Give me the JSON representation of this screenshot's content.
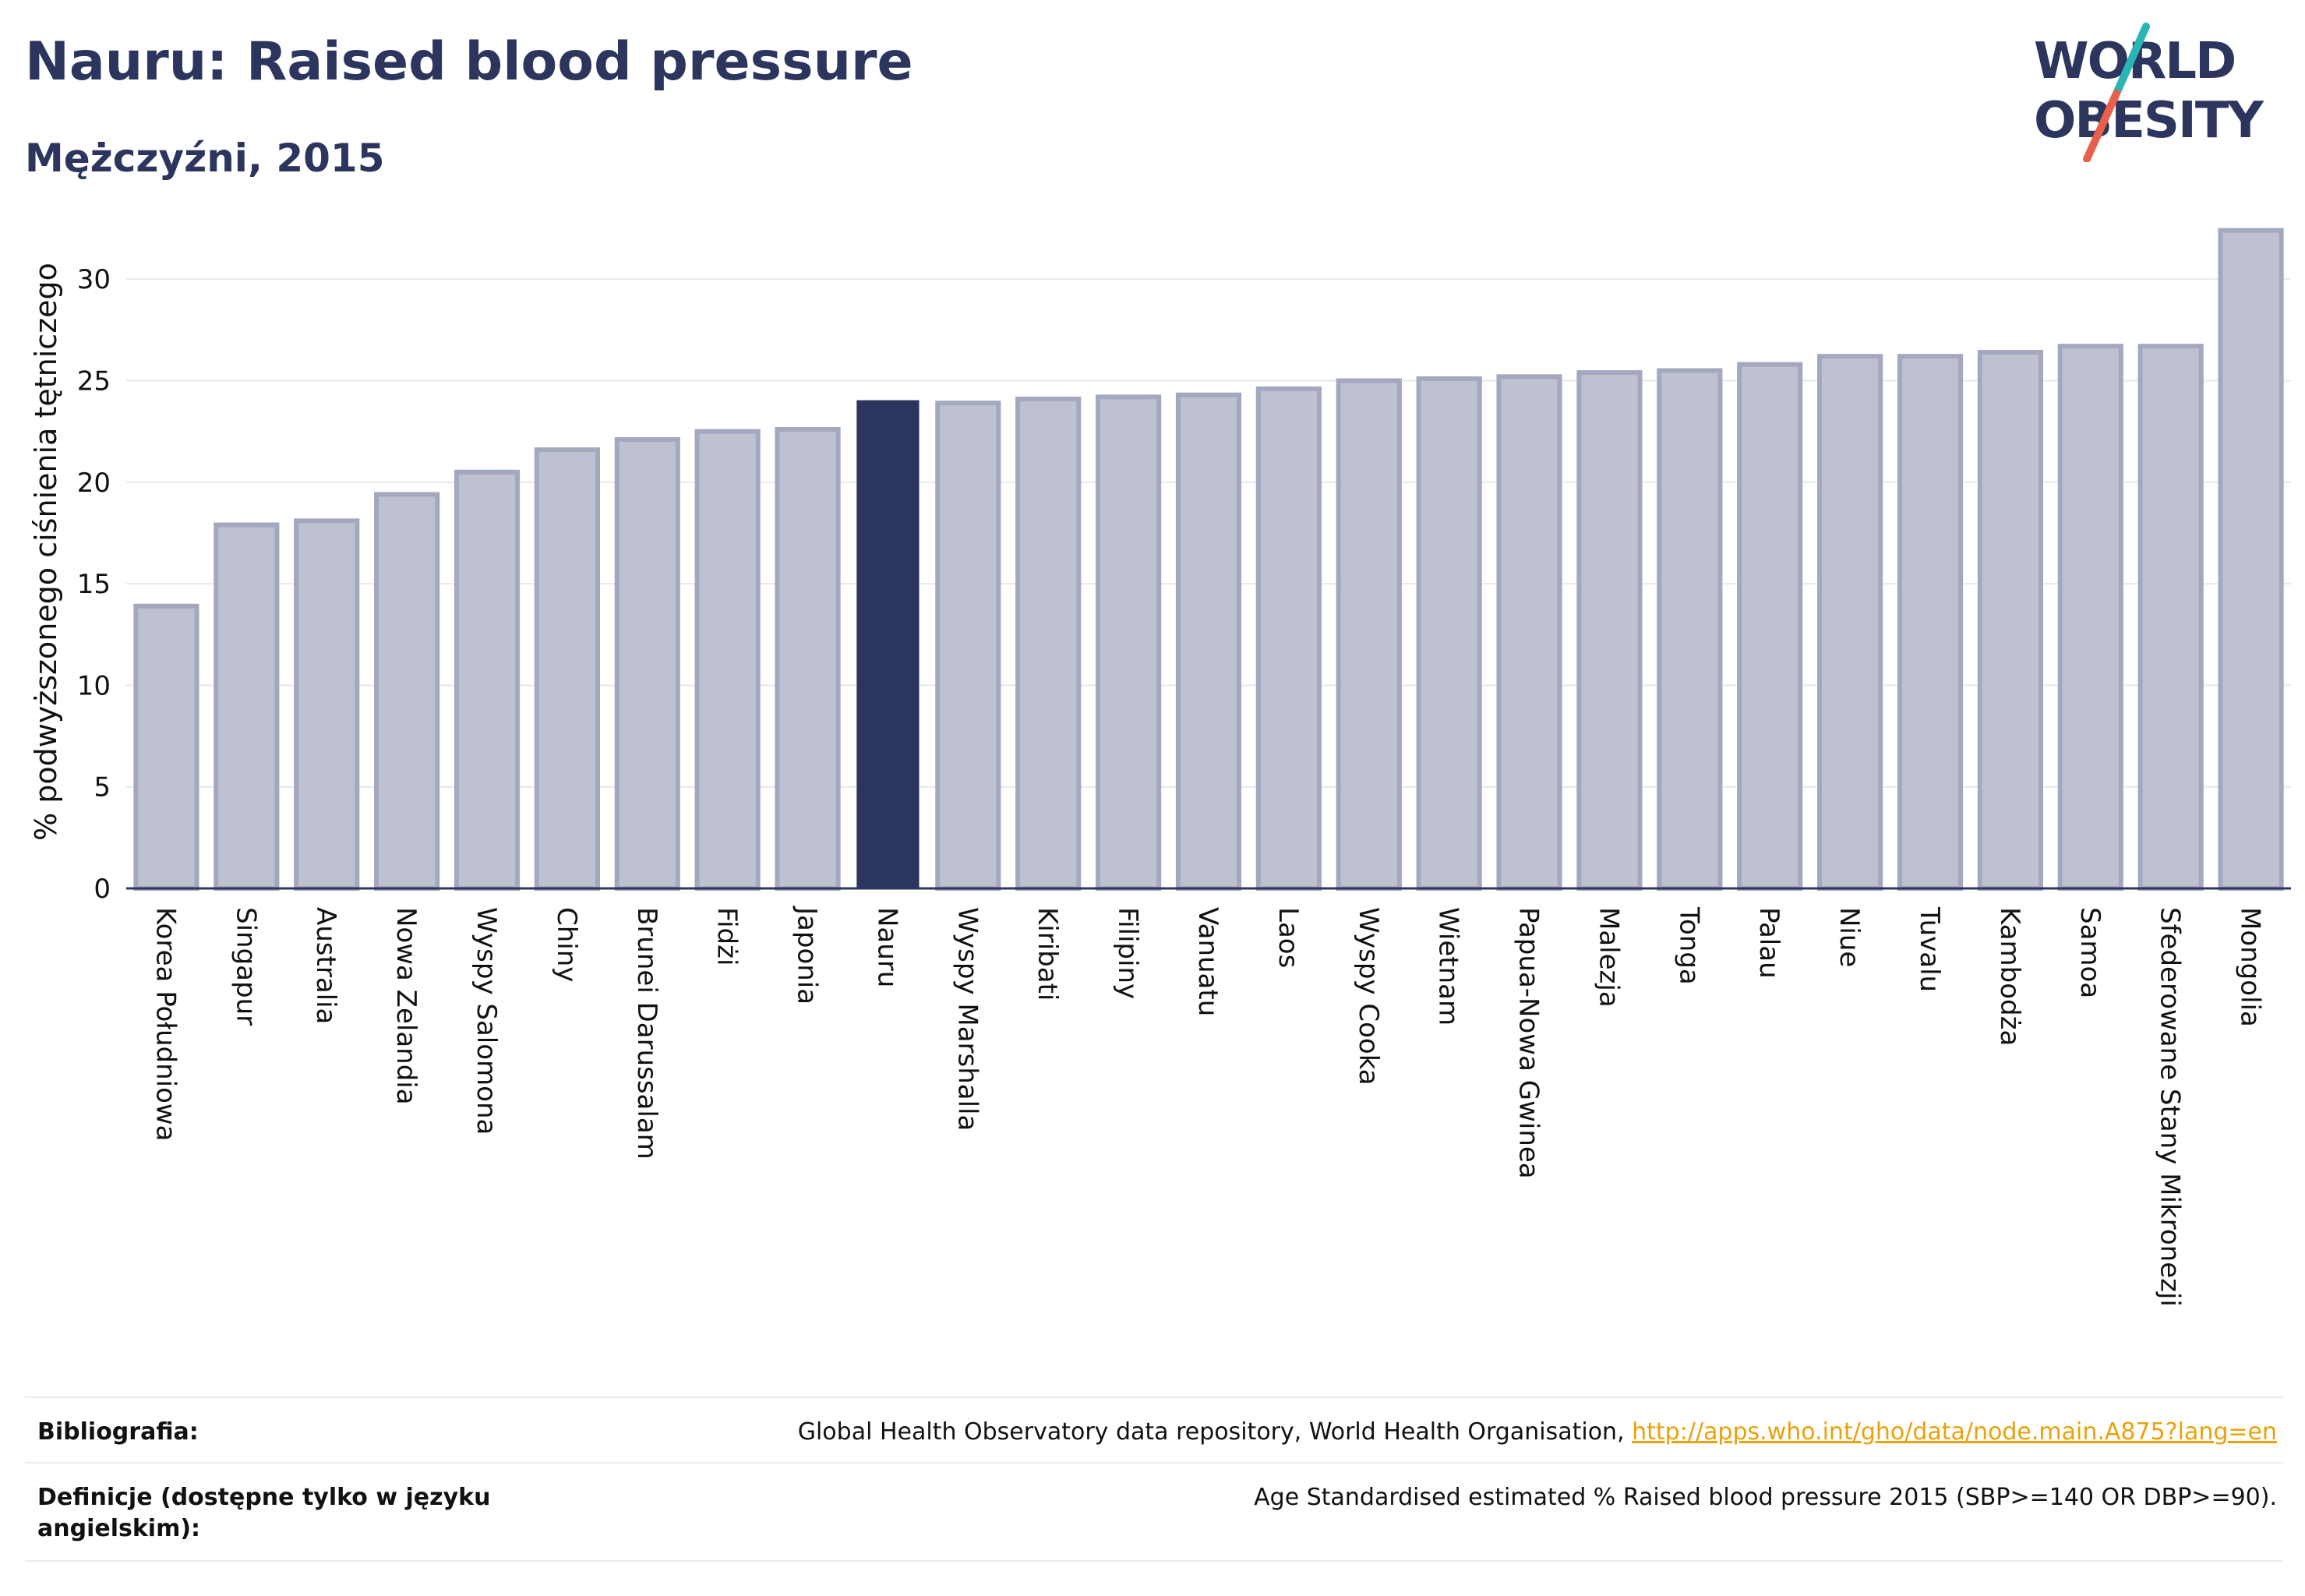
{
  "header": {
    "title": "Nauru: Raised blood pressure",
    "subtitle": "Mężczyźni, 2015"
  },
  "logo": {
    "line1": "WORLD",
    "line2": "OBESITY"
  },
  "colors": {
    "highlight": "#2c355d",
    "bar_fill": "#bec1d0",
    "bar_stroke": "#a4a8bf",
    "grid": "#e6e8ee",
    "axis": "#2c355d",
    "logo_teal": "#2ab5b5",
    "logo_red": "#e8604c",
    "link": "#e8a20b"
  },
  "chart_data": {
    "type": "bar",
    "ylabel": "% podwyższonego ciśnienia tętniczego",
    "xlabel": "",
    "ylim": [
      0,
      33
    ],
    "yticks": [
      0,
      5,
      10,
      15,
      20,
      25,
      30
    ],
    "grid": true,
    "highlight_category": "Nauru",
    "categories": [
      "Korea Południowa",
      "Singapur",
      "Australia",
      "Nowa Zelandia",
      "Wyspy Salomona",
      "Chiny",
      "Brunei Darussalam",
      "Fidżi",
      "Japonia",
      "Nauru",
      "Wyspy Marshalla",
      "Kiribati",
      "Filipiny",
      "Vanuatu",
      "Laos",
      "Wyspy Cooka",
      "Wietnam",
      "Papua-Nowa Gwinea",
      "Malezja",
      "Tonga",
      "Palau",
      "Niue",
      "Tuvalu",
      "Kambodża",
      "Samoa",
      "Sfederowane Stany Mikronezji",
      "Mongolia"
    ],
    "values": [
      13.9,
      17.9,
      18.1,
      19.4,
      20.5,
      21.6,
      22.1,
      22.5,
      22.6,
      24.0,
      23.9,
      24.1,
      24.2,
      24.3,
      24.6,
      25.0,
      25.1,
      25.2,
      25.4,
      25.5,
      25.8,
      26.2,
      26.2,
      26.4,
      26.7,
      26.7,
      32.4
    ]
  },
  "footer": {
    "bibliography_label": "Bibliografia:",
    "bibliography_text": "Global Health Observatory data repository, World Health Organisation, ",
    "bibliography_link": "http://apps.who.int/gho/data/node.main.A875?lang=en",
    "definitions_label": "Definicje (dostępne tylko w języku angielskim):",
    "definitions_text": "Age Standardised estimated % Raised blood pressure 2015 (SBP>=140 OR DBP>=90)."
  }
}
